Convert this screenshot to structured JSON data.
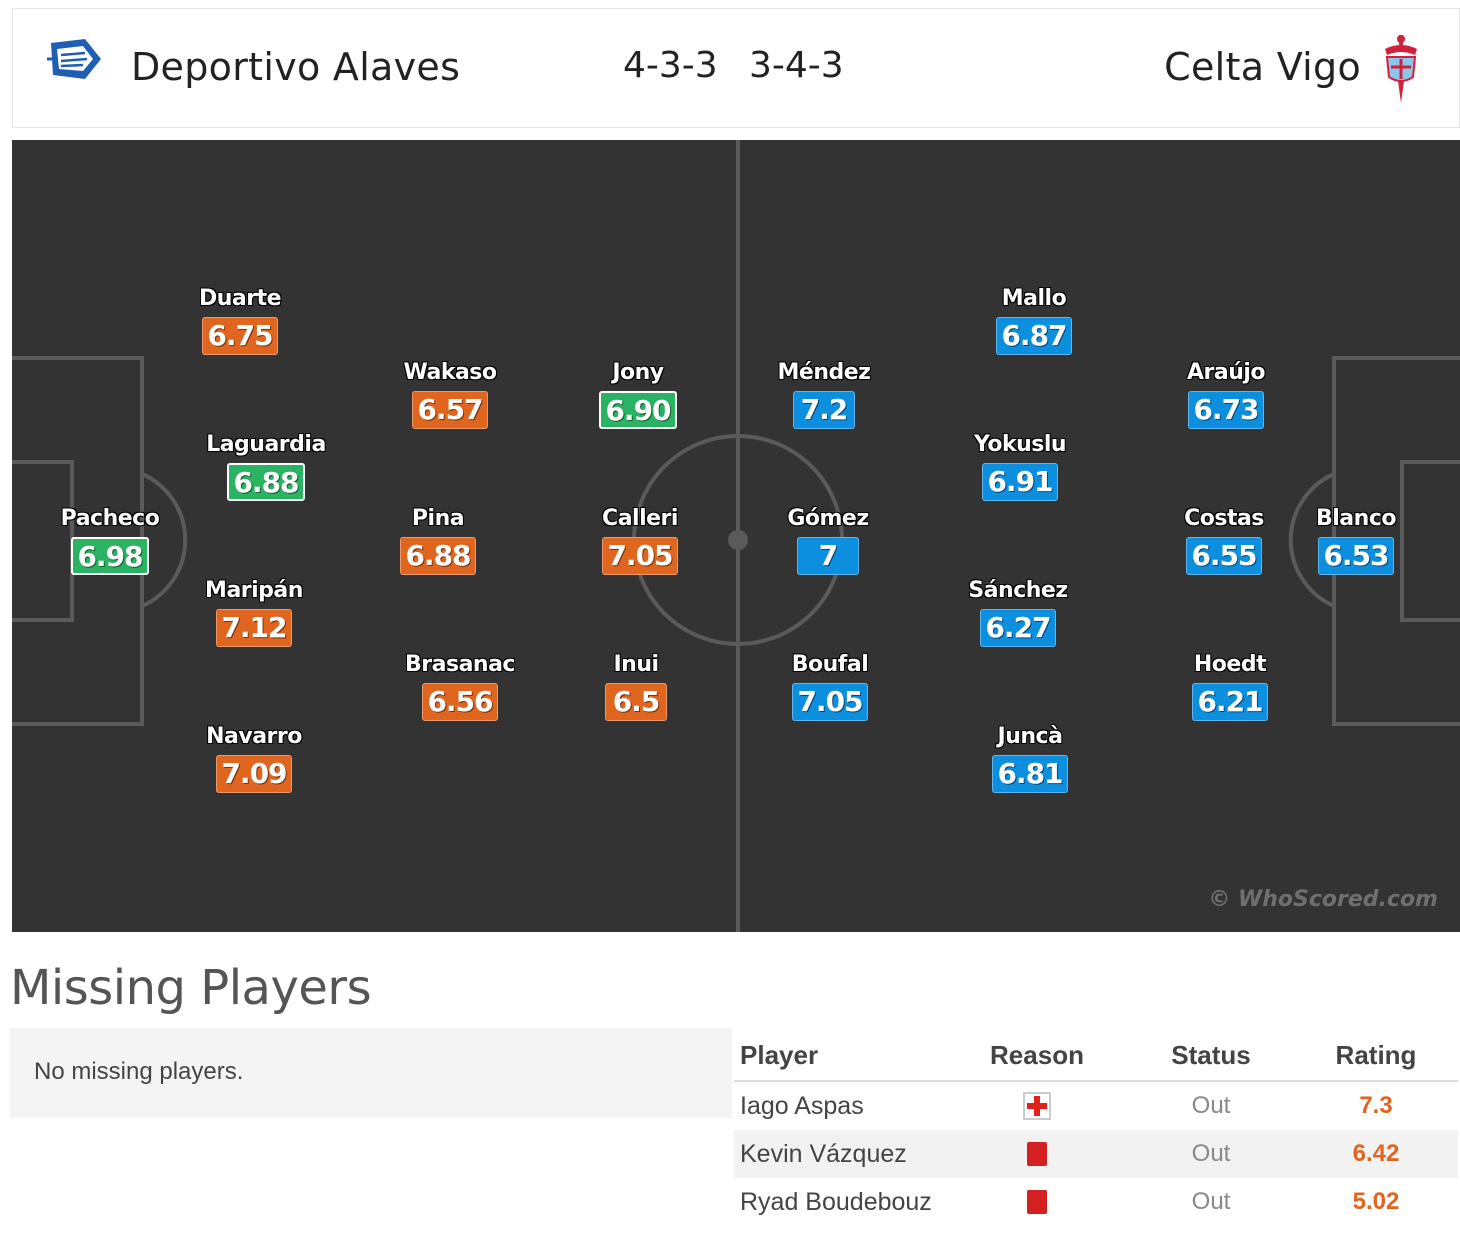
{
  "header": {
    "home_team": "Deportivo Alaves",
    "home_formation": "4-3-3",
    "away_formation": "3-4-3",
    "away_team": "Celta Vigo"
  },
  "colors": {
    "pitch": "#333333",
    "rating_orange": "#e0651f",
    "rating_green": "#2ab363",
    "rating_blue": "#0d8fe0"
  },
  "home_players": [
    {
      "name": "Pacheco",
      "rating": "6.98",
      "color": "green"
    },
    {
      "name": "Duarte",
      "rating": "6.75",
      "color": "orange"
    },
    {
      "name": "Laguardia",
      "rating": "6.88",
      "color": "green"
    },
    {
      "name": "Maripán",
      "rating": "7.12",
      "color": "orange"
    },
    {
      "name": "Navarro",
      "rating": "7.09",
      "color": "orange"
    },
    {
      "name": "Wakaso",
      "rating": "6.57",
      "color": "orange"
    },
    {
      "name": "Pina",
      "rating": "6.88",
      "color": "orange"
    },
    {
      "name": "Brasanac",
      "rating": "6.56",
      "color": "orange"
    },
    {
      "name": "Jony",
      "rating": "6.90",
      "color": "green"
    },
    {
      "name": "Calleri",
      "rating": "7.05",
      "color": "orange"
    },
    {
      "name": "Inui",
      "rating": "6.5",
      "color": "orange"
    }
  ],
  "away_players": [
    {
      "name": "Méndez",
      "rating": "7.2",
      "color": "blue"
    },
    {
      "name": "Gómez",
      "rating": "7",
      "color": "blue"
    },
    {
      "name": "Boufal",
      "rating": "7.05",
      "color": "blue"
    },
    {
      "name": "Mallo",
      "rating": "6.87",
      "color": "blue"
    },
    {
      "name": "Yokuslu",
      "rating": "6.91",
      "color": "blue"
    },
    {
      "name": "Sánchez",
      "rating": "6.27",
      "color": "blue"
    },
    {
      "name": "Juncà",
      "rating": "6.81",
      "color": "blue"
    },
    {
      "name": "Araújo",
      "rating": "6.73",
      "color": "blue"
    },
    {
      "name": "Costas",
      "rating": "6.55",
      "color": "blue"
    },
    {
      "name": "Hoedt",
      "rating": "6.21",
      "color": "blue"
    },
    {
      "name": "Blanco",
      "rating": "6.53",
      "color": "blue"
    }
  ],
  "watermark": "© WhoScored.com",
  "missing": {
    "title": "Missing Players",
    "home_empty_text": "No missing players.",
    "columns": {
      "player": "Player",
      "reason": "Reason",
      "status": "Status",
      "rating": "Rating"
    },
    "rows": [
      {
        "player": "Iago Aspas",
        "reason_icon": "injury-icon",
        "status": "Out",
        "rating": "7.3"
      },
      {
        "player": "Kevin Vázquez",
        "reason_icon": "red-card-icon",
        "status": "Out",
        "rating": "6.42"
      },
      {
        "player": "Ryad Boudebouz",
        "reason_icon": "red-card-icon",
        "status": "Out",
        "rating": "5.02"
      }
    ]
  }
}
